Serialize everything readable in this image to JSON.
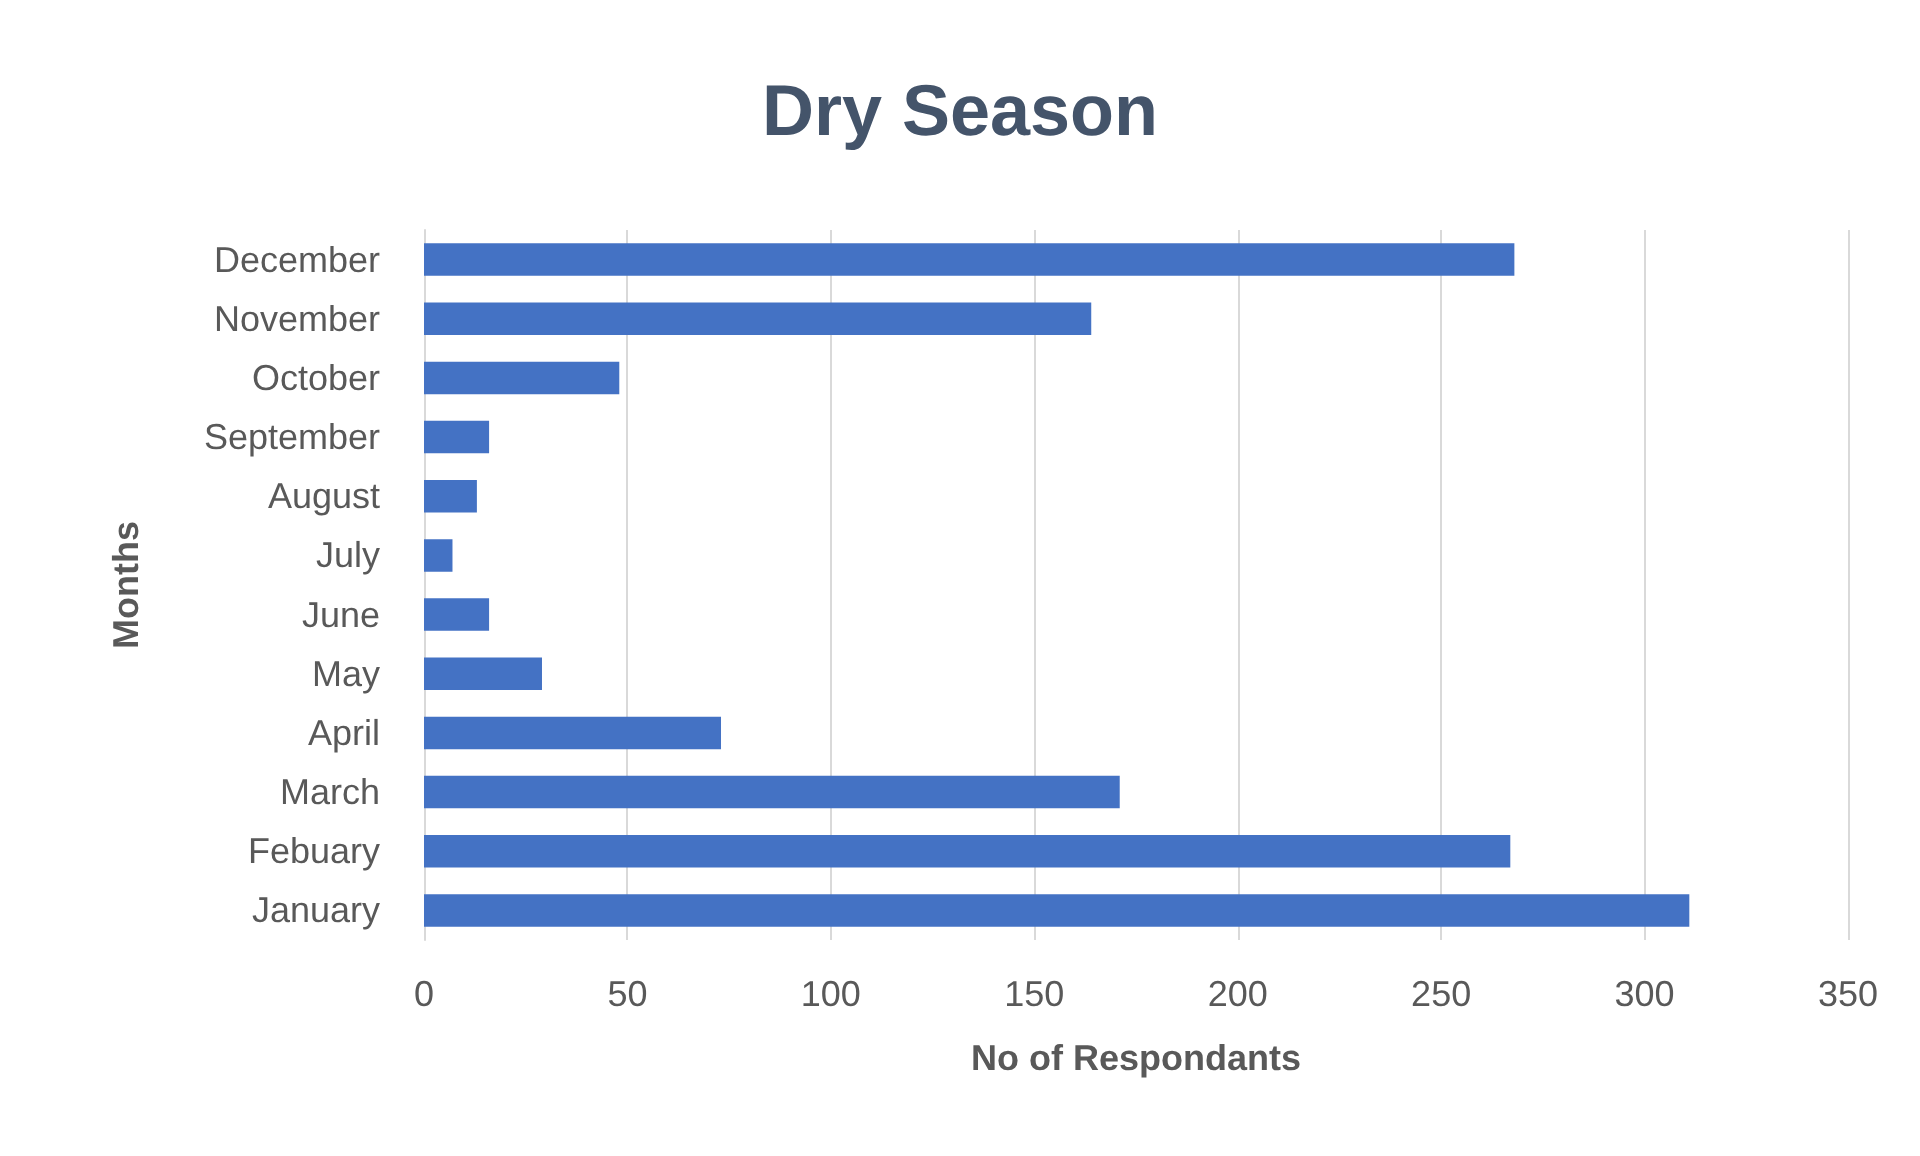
{
  "chart_data": {
    "type": "bar",
    "orientation": "horizontal",
    "title": "Dry Season",
    "xlabel": "No of Respondants",
    "ylabel": "Months",
    "categories": [
      "December",
      "November",
      "October",
      "September",
      "August",
      "July",
      "June",
      "May",
      "April",
      "March",
      "Febuary",
      "January"
    ],
    "values": [
      268,
      164,
      48,
      16,
      13,
      7,
      16,
      29,
      73,
      171,
      267,
      311
    ],
    "color": "#4472c4",
    "xlim": [
      0,
      350
    ],
    "xticks": [
      0,
      50,
      100,
      150,
      200,
      250,
      300,
      350
    ],
    "grid": "x"
  }
}
